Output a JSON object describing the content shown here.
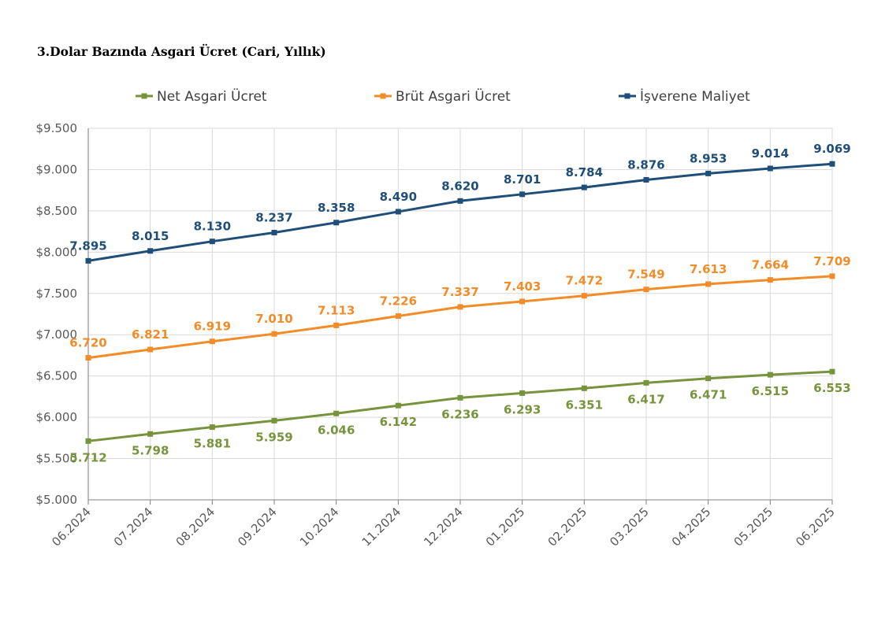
{
  "chart_data": {
    "type": "line",
    "title": "3.Dolar Bazında Asgari Ücret (Cari, Yıllık)",
    "categories": [
      "06.2024",
      "07.2024",
      "08.2024",
      "09.2024",
      "10.2024",
      "11.2024",
      "12.2024",
      "01.2025",
      "02.2025",
      "03.2025",
      "04.2025",
      "05.2025",
      "06.2025"
    ],
    "ylim": [
      5000,
      9500
    ],
    "y_ticks": [
      {
        "value": 5000,
        "label": "$5.000"
      },
      {
        "value": 5500,
        "label": "$5.500"
      },
      {
        "value": 6000,
        "label": "$6.000"
      },
      {
        "value": 6500,
        "label": "$6.500"
      },
      {
        "value": 7000,
        "label": "$7.000"
      },
      {
        "value": 7500,
        "label": "$7.500"
      },
      {
        "value": 8000,
        "label": "$8.000"
      },
      {
        "value": 8500,
        "label": "$8.500"
      },
      {
        "value": 9000,
        "label": "$9.000"
      },
      {
        "value": 9500,
        "label": "$9.500"
      }
    ],
    "grid": true,
    "legend_position": "top",
    "series": [
      {
        "name": "Net Asgari Ücret",
        "color": "#77933c",
        "label_position": "below",
        "values": [
          5712,
          5798,
          5881,
          5959,
          6046,
          6142,
          6236,
          6293,
          6351,
          6417,
          6471,
          6515,
          6553
        ],
        "labels": [
          "5.712",
          "5.798",
          "5.881",
          "5.959",
          "6.046",
          "6.142",
          "6.236",
          "6.293",
          "6.351",
          "6.417",
          "6.471",
          "6.515",
          "6.553"
        ]
      },
      {
        "name": "Brüt Asgari Ücret",
        "color": "#f28c28",
        "label_position": "above",
        "values": [
          6720,
          6821,
          6919,
          7010,
          7113,
          7226,
          7337,
          7403,
          7472,
          7549,
          7613,
          7664,
          7709
        ],
        "labels": [
          "6.720",
          "6.821",
          "6.919",
          "7.010",
          "7.113",
          "7.226",
          "7.337",
          "7.403",
          "7.472",
          "7.549",
          "7.613",
          "7.664",
          "7.709"
        ]
      },
      {
        "name": "İşverene Maliyet",
        "color": "#1f4e79",
        "label_position": "above",
        "values": [
          7895,
          8015,
          8130,
          8237,
          8358,
          8490,
          8620,
          8701,
          8784,
          8876,
          8953,
          9014,
          9069
        ],
        "labels": [
          "7.895",
          "8.015",
          "8.130",
          "8.237",
          "8.358",
          "8.490",
          "8.620",
          "8.701",
          "8.784",
          "8.876",
          "8.953",
          "9.014",
          "9.069"
        ]
      }
    ]
  }
}
